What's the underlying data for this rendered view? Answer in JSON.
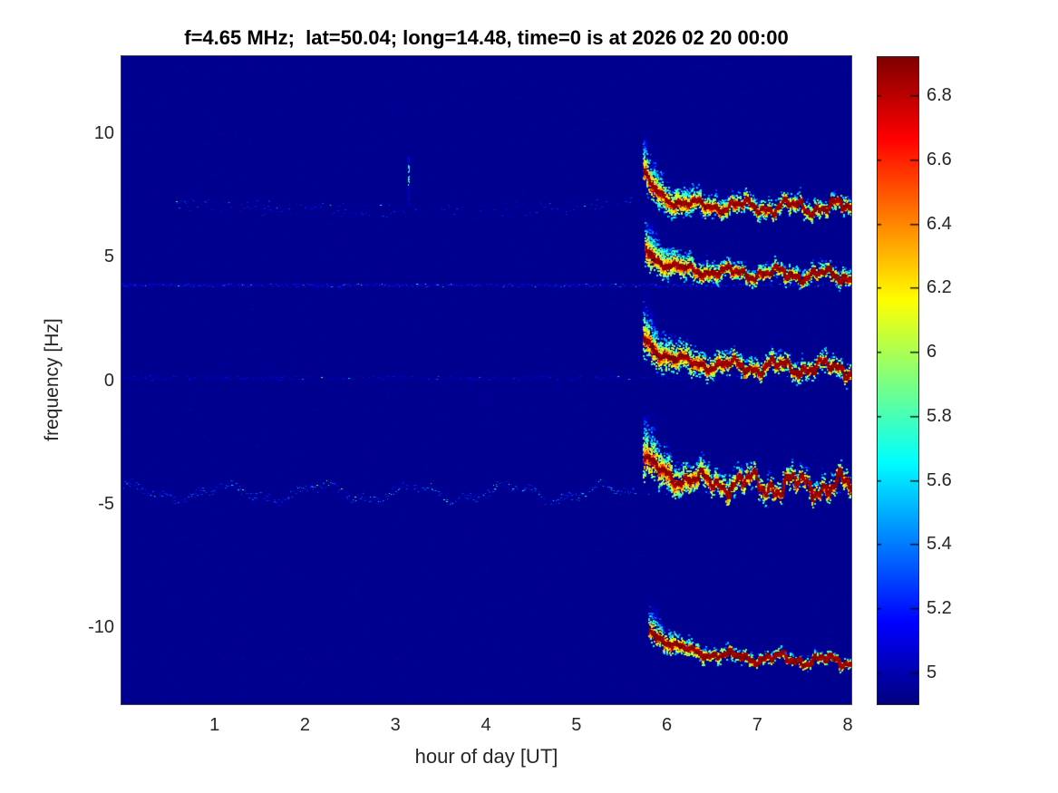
{
  "title": "f=4.65 MHz;  lat=50.04; long=14.48, time=0 is at 2026 02 20 00:00",
  "chart_data": {
    "type": "heatmap",
    "subtype": "doppler-shift-spectrogram",
    "title": "f=4.65 MHz;  lat=50.04; long=14.48, time=0 is at 2026 02 20 00:00",
    "xlabel": "hour of day [UT]",
    "ylabel": "frequency [Hz]",
    "xlim": [
      -0.03,
      8.04
    ],
    "ylim": [
      -13.1,
      13.1
    ],
    "xticks": [
      1,
      2,
      3,
      4,
      5,
      6,
      7,
      8
    ],
    "xtick_labels": [
      "1",
      "2",
      "3",
      "4",
      "5",
      "6",
      "7",
      "8"
    ],
    "yticks": [
      10,
      5,
      0,
      -5,
      -10
    ],
    "ytick_labels": [
      "10",
      "5",
      "0",
      "-5",
      "-10"
    ],
    "grid": false,
    "colormap": "jet",
    "clim": [
      4.9,
      6.92
    ],
    "background_value": 4.93,
    "colorbar": {
      "position": "right",
      "ticks": [
        6.8,
        6.6,
        6.4,
        6.2,
        6,
        5.8,
        5.6,
        5.4,
        5.2,
        5
      ],
      "tick_labels": [
        "6.8",
        "6.6",
        "6.4",
        "6.2",
        "6",
        "5.8",
        "5.6",
        "5.4",
        "5.2",
        "5"
      ]
    },
    "seed": 20260220,
    "traces": [
      {
        "name": "echo-trace-plus7Hz",
        "t0": 5.74,
        "f_start": 8.4,
        "f_end": 7.05,
        "tau": 0.18,
        "drift": -0.03,
        "wiggle": 0.2,
        "spread0": 1.0,
        "spread_inf": 0.45,
        "density": 1.0,
        "approx_points": [
          [
            5.74,
            8.3
          ],
          [
            5.85,
            7.7
          ],
          [
            6.0,
            7.45
          ],
          [
            6.5,
            7.2
          ],
          [
            7.0,
            7.15
          ],
          [
            7.5,
            7.1
          ],
          [
            8.0,
            7.0
          ]
        ],
        "cloud_top_hz": 10.2
      },
      {
        "name": "echo-trace-plus4Hz",
        "t0": 5.76,
        "f_start": 5.35,
        "f_end": 4.4,
        "tau": 0.2,
        "drift": -0.1,
        "wiggle": 0.18,
        "spread0": 0.95,
        "spread_inf": 0.42,
        "density": 0.95,
        "approx_points": [
          [
            5.76,
            5.3
          ],
          [
            5.9,
            4.8
          ],
          [
            6.1,
            4.55
          ],
          [
            6.5,
            4.4
          ],
          [
            7.0,
            4.35
          ],
          [
            7.5,
            4.25
          ],
          [
            8.0,
            4.15
          ]
        ],
        "cloud_top_hz": 6.2
      },
      {
        "name": "echo-trace-0Hz",
        "t0": 5.74,
        "f_start": 1.7,
        "f_end": 0.6,
        "tau": 0.25,
        "drift": -0.06,
        "wiggle": 0.22,
        "spread0": 1.1,
        "spread_inf": 0.5,
        "density": 1.0,
        "approx_points": [
          [
            5.75,
            1.6
          ],
          [
            5.9,
            1.1
          ],
          [
            6.2,
            0.75
          ],
          [
            6.6,
            0.6
          ],
          [
            7.0,
            0.55
          ],
          [
            7.5,
            0.5
          ],
          [
            8.0,
            0.45
          ]
        ],
        "cloud_top_hz": 3.0
      },
      {
        "name": "echo-trace-minus4Hz",
        "t0": 5.74,
        "f_start": -3.1,
        "f_end": -4.15,
        "tau": 0.25,
        "drift": -0.08,
        "wiggle": 0.34,
        "spread0": 1.2,
        "spread_inf": 0.55,
        "density": 1.05,
        "approx_points": [
          [
            5.75,
            -3.2
          ],
          [
            5.9,
            -3.7
          ],
          [
            6.2,
            -4.0
          ],
          [
            6.6,
            -4.15
          ],
          [
            7.0,
            -4.25
          ],
          [
            7.5,
            -4.2
          ],
          [
            8.0,
            -4.35
          ]
        ],
        "cloud_top_hz": -1.6
      },
      {
        "name": "echo-trace-minus11Hz",
        "t0": 5.8,
        "f_start": -10.05,
        "f_end": -11.15,
        "tau": 0.3,
        "drift": -0.12,
        "wiggle": 0.16,
        "spread0": 0.8,
        "spread_inf": 0.3,
        "density": 0.55,
        "approx_points": [
          [
            5.8,
            -10.1
          ],
          [
            6.0,
            -10.7
          ],
          [
            6.4,
            -11.0
          ],
          [
            6.9,
            -11.15
          ],
          [
            7.4,
            -11.25
          ],
          [
            8.0,
            -11.45
          ]
        ],
        "cloud_top_hz": -9.0
      }
    ],
    "faint_lines": [
      {
        "name": "sporadic-band-plus7Hz",
        "f": 6.85,
        "t": [
          0.55,
          5.62
        ],
        "density": 0.4,
        "spread": 0.3,
        "v": [
          4.96,
          5.3
        ],
        "bright_p": 0.03,
        "smile": {
          "coef": 0.05,
          "center": 3.15
        }
      },
      {
        "name": "carrier-line-plus3.9Hz",
        "f": 3.85,
        "t": [
          -0.03,
          8.04
        ],
        "density": 0.85,
        "spread": 0.06,
        "v": [
          4.96,
          5.28
        ],
        "bright_p": 0.05
      },
      {
        "name": "carrier-line-0Hz",
        "f": 0.1,
        "t": [
          -0.03,
          8.04
        ],
        "density": 0.5,
        "spread": 0.09,
        "v": [
          4.96,
          5.22
        ],
        "bright_p": 0.03
      },
      {
        "name": "wavy-line-minus4.5Hz",
        "f": -4.55,
        "t": [
          -0.03,
          5.66
        ],
        "density": 0.85,
        "spread": 0.16,
        "v": [
          4.96,
          5.4
        ],
        "bright_p": 0.1,
        "wave": {
          "a1": 0.3,
          "p1": 1.05,
          "ph1": 1.2,
          "a2": 0.13,
          "p2": 0.37,
          "ph2": 0.4
        }
      },
      {
        "name": "line-minus4.5Hz-right",
        "f": -4.55,
        "t": [
          5.66,
          8.04
        ],
        "density": 0.5,
        "spread": 0.06,
        "v": [
          4.95,
          5.18
        ],
        "bright_p": 0.02
      },
      {
        "name": "sparse-dots-minus11Hz",
        "f": -11.2,
        "t": [
          0.6,
          3.4
        ],
        "density": 0.05,
        "spread": 0.12,
        "v": [
          4.96,
          5.12
        ],
        "bright_p": 0.0
      }
    ],
    "streak": {
      "name": "vertical-streak",
      "t": 3.14,
      "f": [
        7.15,
        9.1
      ],
      "bright_f": [
        7.9,
        8.75
      ],
      "v": 5.1,
      "v_bright": 5.75
    },
    "noise": {
      "density": 2600,
      "value_range": [
        4.94,
        5.12
      ]
    }
  }
}
